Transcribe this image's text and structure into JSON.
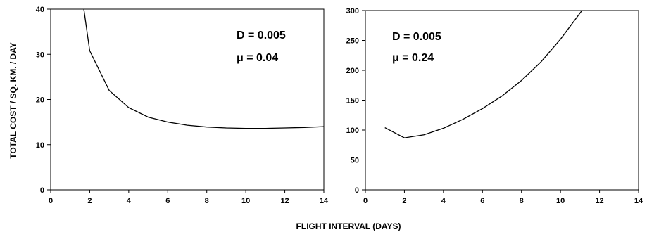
{
  "figure": {
    "ylabel": "TOTAL  COST  /  SQ. KM.  /  DAY",
    "xlabel": "FLIGHT  INTERVAL  (DAYS)"
  },
  "chart_data": [
    {
      "type": "line",
      "xlim": [
        0,
        14
      ],
      "ylim": [
        0,
        40
      ],
      "xticks": [
        "0",
        "2",
        "4",
        "6",
        "8",
        "10",
        "12",
        "14"
      ],
      "yticks": [
        "0",
        "10",
        "20",
        "30",
        "40"
      ],
      "annotations": [
        "D  =  0.005",
        "μ  =  0.04"
      ],
      "series": [
        {
          "x": [
            1.7,
            2,
            3,
            4,
            5,
            6,
            7,
            8,
            9,
            10,
            11,
            12,
            13,
            14
          ],
          "y": [
            40,
            30.8,
            22,
            18.2,
            16.1,
            15.0,
            14.3,
            13.9,
            13.7,
            13.6,
            13.6,
            13.7,
            13.8,
            14.0
          ]
        }
      ],
      "grid": false
    },
    {
      "type": "line",
      "xlim": [
        0,
        14
      ],
      "ylim": [
        0,
        300
      ],
      "xticks": [
        "0",
        "2",
        "4",
        "6",
        "8",
        "10",
        "12",
        "14"
      ],
      "yticks": [
        "0",
        "50",
        "100",
        "150",
        "200",
        "250",
        "300"
      ],
      "annotations": [
        "D  =  0.005",
        "μ  =  0.24"
      ],
      "series": [
        {
          "x": [
            1,
            2,
            3,
            4,
            5,
            6,
            7,
            8,
            9,
            10,
            11.1
          ],
          "y": [
            104,
            87,
            92,
            103,
            118,
            136,
            157,
            183,
            214,
            252,
            300
          ]
        }
      ],
      "grid": false
    }
  ]
}
